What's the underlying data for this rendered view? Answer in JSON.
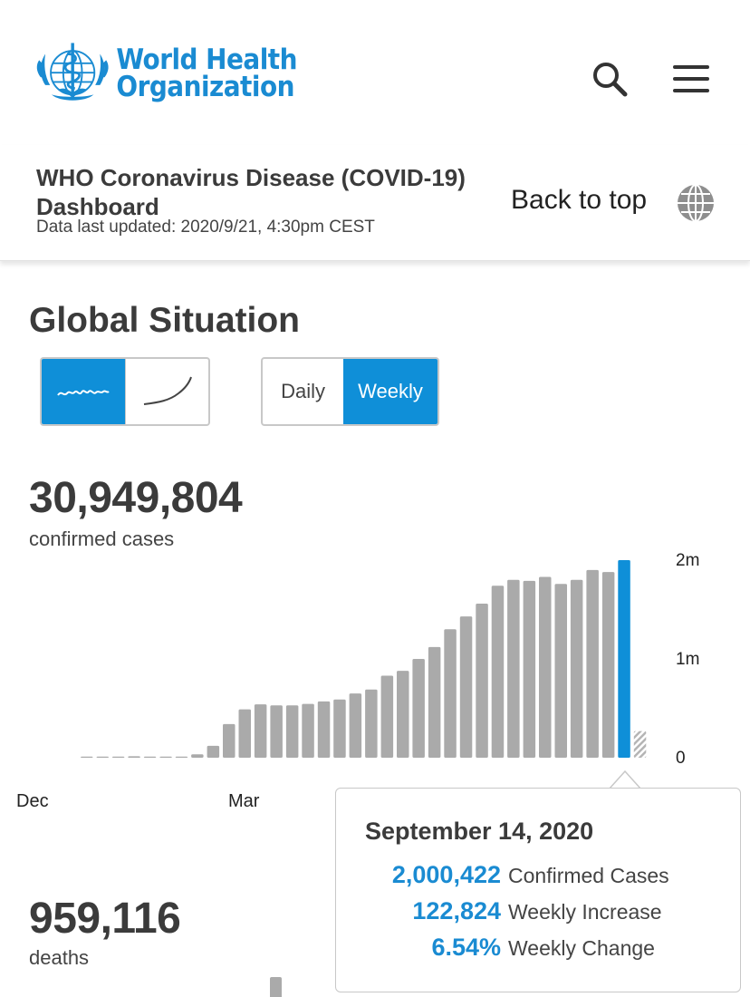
{
  "header": {
    "logo_line1": "World Health",
    "logo_line2": "Organization",
    "search_icon": "search-icon",
    "menu_icon": "hamburger-menu-icon"
  },
  "subheader": {
    "title": "WHO Coronavirus Disease (COVID-19) Dashboard",
    "updated": "Data last updated: 2020/9/21, 4:30pm CEST",
    "back_to_top": "Back to top",
    "globe_icon": "globe-icon"
  },
  "global": {
    "title": "Global Situation",
    "shape_toggle": [
      "wavy-line-icon",
      "curve-line-icon"
    ],
    "period_daily": "Daily",
    "period_weekly": "Weekly",
    "confirmed_total": "30,949,804",
    "confirmed_label": "confirmed cases",
    "deaths_total": "959,116",
    "deaths_label": "deaths"
  },
  "tooltip": {
    "date": "September 14, 2020",
    "confirmed_value": "2,000,422",
    "confirmed_label": "Confirmed Cases",
    "increase_value": "122,824",
    "increase_label": "Weekly Increase",
    "change_value": "6.54%",
    "change_label": "Weekly Change"
  },
  "chart_data": {
    "type": "bar",
    "x_labels": [
      "Dec",
      "Mar"
    ],
    "y_ticks": [
      "0",
      "1m",
      "2m"
    ],
    "ylim": [
      0,
      2000000
    ],
    "values": [
      0,
      6000,
      10000,
      15000,
      12000,
      8000,
      12000,
      35000,
      120000,
      340000,
      490000,
      540000,
      530000,
      530000,
      545000,
      570000,
      590000,
      650000,
      690000,
      830000,
      880000,
      1000000,
      1120000,
      1300000,
      1430000,
      1560000,
      1740000,
      1800000,
      1790000,
      1830000,
      1760000,
      1800000,
      1900000,
      1880000,
      2000422,
      270000
    ],
    "highlight_index": 34,
    "partial_index": 35,
    "colors": {
      "bar": "#aaaaaa",
      "highlight": "#0f8fd8",
      "partial": "#c0c0c0"
    }
  }
}
